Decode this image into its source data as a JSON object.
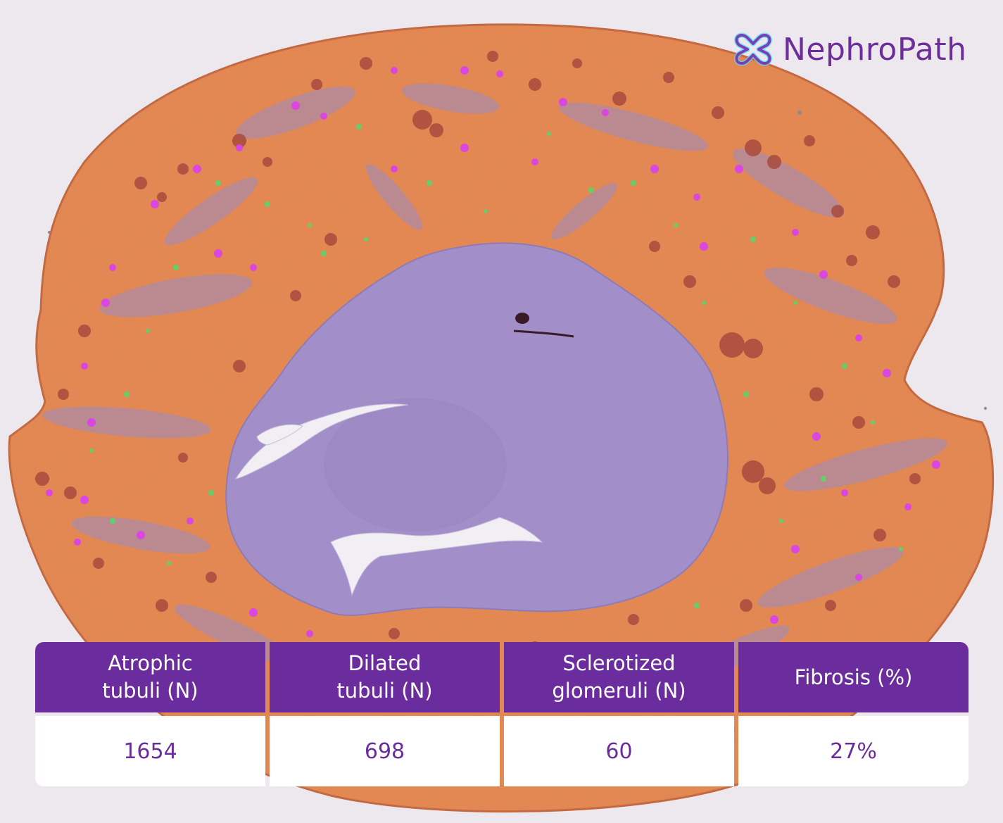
{
  "brand": {
    "name": "NephroPath",
    "color": "#6b2e9b",
    "icon": "nephropath-logo-icon"
  },
  "image": {
    "colors": {
      "background": "#ece8ee",
      "cortex": "#e8884f",
      "medulla": "#a390c9",
      "atrophic": "#a84a3e",
      "glomeruli": "#d946e0",
      "fibrosis_marker": "#58d66a"
    }
  },
  "metrics": [
    {
      "label": "Atrophic\ntubuli (N)",
      "value": "1654"
    },
    {
      "label": "Dilated\ntubuli (N)",
      "value": "698"
    },
    {
      "label": "Sclerotized\nglomeruli (N)",
      "value": "60"
    },
    {
      "label": "Fibrosis (%)",
      "value": "27%"
    }
  ],
  "theme": {
    "header_bg": "#6b2d9d",
    "header_text": "#ffffff",
    "value_text": "#6b2d9d"
  }
}
